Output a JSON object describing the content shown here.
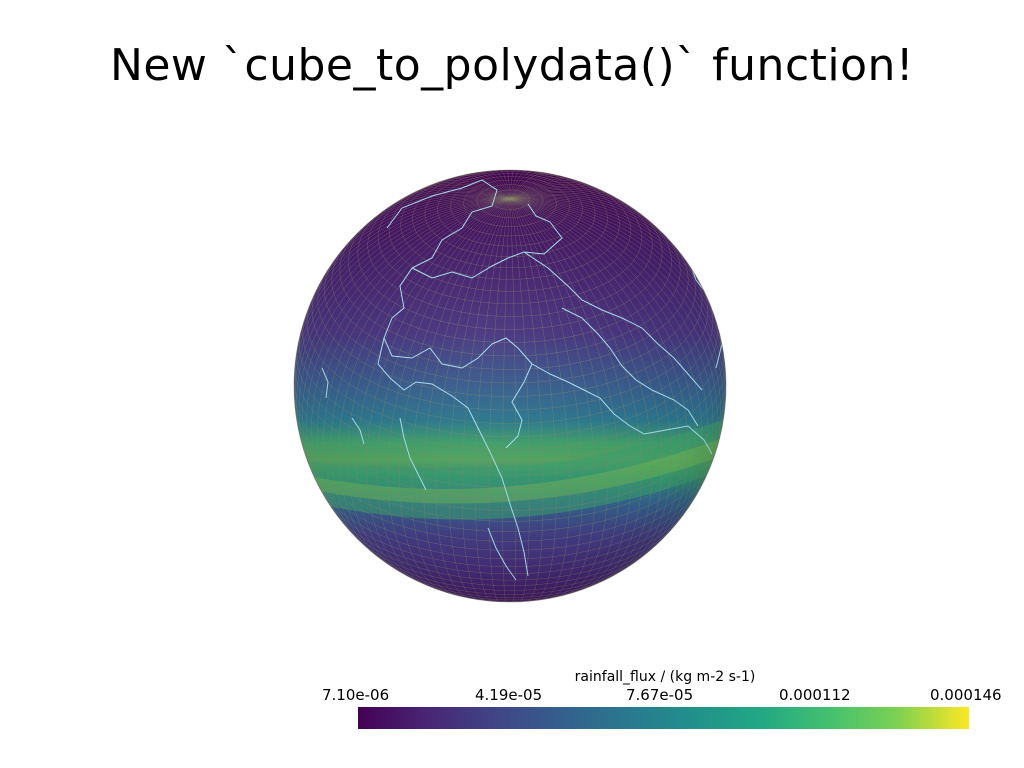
{
  "title": "New `cube_to_polydata()` function!",
  "globe": {
    "colors": {
      "low": "#440154",
      "mid_low": "#3b3f86",
      "mid": "#2a788e",
      "high": "#7ad151",
      "mesh_lines": "#8c8a6a",
      "coastlines": "#a8e0f0"
    }
  },
  "colorbar": {
    "title": "rainfall_flux / (kg m-2 s-1)",
    "ticks": [
      "7.10e-06",
      "4.19e-05",
      "7.67e-05",
      "0.000112",
      "0.000146"
    ],
    "colormap": "viridis"
  }
}
